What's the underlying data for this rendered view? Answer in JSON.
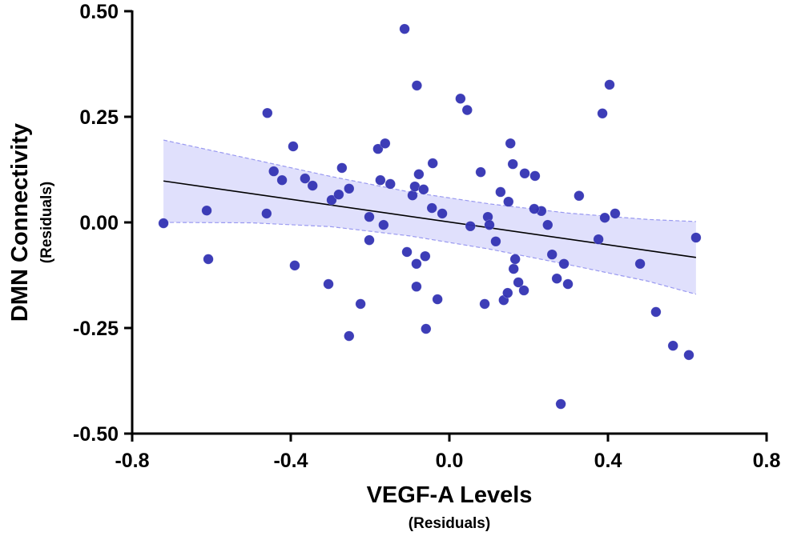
{
  "chart_data": {
    "type": "scatter",
    "title": "",
    "xlabel": "VEGF-A Levels",
    "xlabel_sub": "(Residuals)",
    "ylabel": "DMN Connectivity",
    "ylabel_sub": "(Residuals)",
    "xlim": [
      -0.8,
      0.8
    ],
    "ylim": [
      -0.5,
      0.5
    ],
    "xticks": [
      -0.8,
      -0.4,
      0.0,
      0.4,
      0.8
    ],
    "xtick_labels": [
      "-0.8",
      "-0.4",
      "0.0",
      "0.4",
      "0.8"
    ],
    "yticks": [
      0.5,
      0.25,
      0.0,
      -0.25,
      -0.5
    ],
    "ytick_labels": [
      "0.50",
      "0.25",
      "0.00",
      "-0.25",
      "-0.50"
    ],
    "grid": false,
    "legend": null,
    "colors": {
      "points": "#3333b3",
      "band_fill": "#e0e0fc",
      "band_edge": "#9999f0",
      "fit_line": "#000000",
      "axis": "#000000"
    },
    "points": [
      {
        "x": -0.721,
        "y": -0.002
      },
      {
        "x": -0.612,
        "y": 0.028
      },
      {
        "x": -0.608,
        "y": -0.087
      },
      {
        "x": -0.459,
        "y": 0.259
      },
      {
        "x": -0.461,
        "y": 0.021
      },
      {
        "x": -0.443,
        "y": 0.121
      },
      {
        "x": -0.422,
        "y": 0.1
      },
      {
        "x": -0.39,
        "y": -0.102
      },
      {
        "x": -0.364,
        "y": 0.104
      },
      {
        "x": -0.345,
        "y": 0.087
      },
      {
        "x": -0.394,
        "y": 0.18
      },
      {
        "x": -0.305,
        "y": -0.146
      },
      {
        "x": -0.297,
        "y": 0.053
      },
      {
        "x": -0.279,
        "y": 0.066
      },
      {
        "x": -0.271,
        "y": 0.129
      },
      {
        "x": -0.253,
        "y": 0.08
      },
      {
        "x": -0.253,
        "y": -0.269
      },
      {
        "x": -0.224,
        "y": -0.193
      },
      {
        "x": -0.202,
        "y": 0.013
      },
      {
        "x": -0.202,
        "y": -0.042
      },
      {
        "x": -0.18,
        "y": 0.174
      },
      {
        "x": -0.174,
        "y": 0.1
      },
      {
        "x": -0.166,
        "y": -0.006
      },
      {
        "x": -0.149,
        "y": 0.091
      },
      {
        "x": -0.107,
        "y": -0.07
      },
      {
        "x": -0.082,
        "y": 0.324
      },
      {
        "x": -0.093,
        "y": 0.064
      },
      {
        "x": -0.087,
        "y": 0.085
      },
      {
        "x": -0.083,
        "y": -0.098
      },
      {
        "x": -0.077,
        "y": 0.114
      },
      {
        "x": -0.083,
        "y": -0.152
      },
      {
        "x": -0.113,
        "y": 0.458
      },
      {
        "x": -0.065,
        "y": 0.078
      },
      {
        "x": -0.059,
        "y": -0.252
      },
      {
        "x": -0.061,
        "y": -0.08
      },
      {
        "x": -0.042,
        "y": 0.14
      },
      {
        "x": -0.044,
        "y": 0.034
      },
      {
        "x": -0.03,
        "y": -0.182
      },
      {
        "x": -0.018,
        "y": 0.021
      },
      {
        "x": 0.028,
        "y": 0.293
      },
      {
        "x": 0.045,
        "y": 0.266
      },
      {
        "x": 0.053,
        "y": -0.009
      },
      {
        "x": 0.079,
        "y": 0.119
      },
      {
        "x": 0.089,
        "y": -0.193
      },
      {
        "x": 0.097,
        "y": 0.013
      },
      {
        "x": 0.101,
        "y": -0.006
      },
      {
        "x": 0.117,
        "y": -0.045
      },
      {
        "x": 0.129,
        "y": 0.072
      },
      {
        "x": 0.137,
        "y": -0.184
      },
      {
        "x": 0.147,
        "y": -0.167
      },
      {
        "x": 0.149,
        "y": 0.049
      },
      {
        "x": 0.154,
        "y": 0.187
      },
      {
        "x": 0.16,
        "y": 0.138
      },
      {
        "x": 0.162,
        "y": -0.11
      },
      {
        "x": 0.166,
        "y": -0.087
      },
      {
        "x": 0.174,
        "y": -0.142
      },
      {
        "x": 0.188,
        "y": -0.161
      },
      {
        "x": 0.19,
        "y": 0.116
      },
      {
        "x": 0.232,
        "y": 0.027
      },
      {
        "x": 0.248,
        "y": -0.006
      },
      {
        "x": 0.259,
        "y": -0.076
      },
      {
        "x": 0.271,
        "y": -0.133
      },
      {
        "x": 0.281,
        "y": -0.43
      },
      {
        "x": 0.289,
        "y": -0.098
      },
      {
        "x": 0.299,
        "y": -0.146
      },
      {
        "x": 0.327,
        "y": 0.063
      },
      {
        "x": 0.376,
        "y": -0.04
      },
      {
        "x": 0.386,
        "y": 0.258
      },
      {
        "x": 0.392,
        "y": 0.011
      },
      {
        "x": 0.404,
        "y": 0.326
      },
      {
        "x": 0.418,
        "y": 0.021
      },
      {
        "x": 0.481,
        "y": -0.098
      },
      {
        "x": 0.521,
        "y": -0.212
      },
      {
        "x": 0.564,
        "y": -0.292
      },
      {
        "x": 0.604,
        "y": -0.314
      },
      {
        "x": 0.622,
        "y": -0.036
      },
      {
        "x": -0.162,
        "y": 0.187
      },
      {
        "x": 0.216,
        "y": 0.11
      },
      {
        "x": 0.214,
        "y": 0.032
      }
    ],
    "fit_line": {
      "x": [
        -0.721,
        0.622
      ],
      "y": [
        0.098,
        -0.083
      ]
    },
    "confidence_band": {
      "x": [
        -0.721,
        -0.5,
        -0.3,
        -0.1,
        0.1,
        0.3,
        0.5,
        0.622
      ],
      "upper": [
        0.195,
        0.15,
        0.109,
        0.072,
        0.044,
        0.022,
        0.007,
        0.002
      ],
      "lower": [
        0.0,
        -0.001,
        -0.01,
        -0.032,
        -0.063,
        -0.1,
        -0.139,
        -0.17
      ]
    }
  }
}
